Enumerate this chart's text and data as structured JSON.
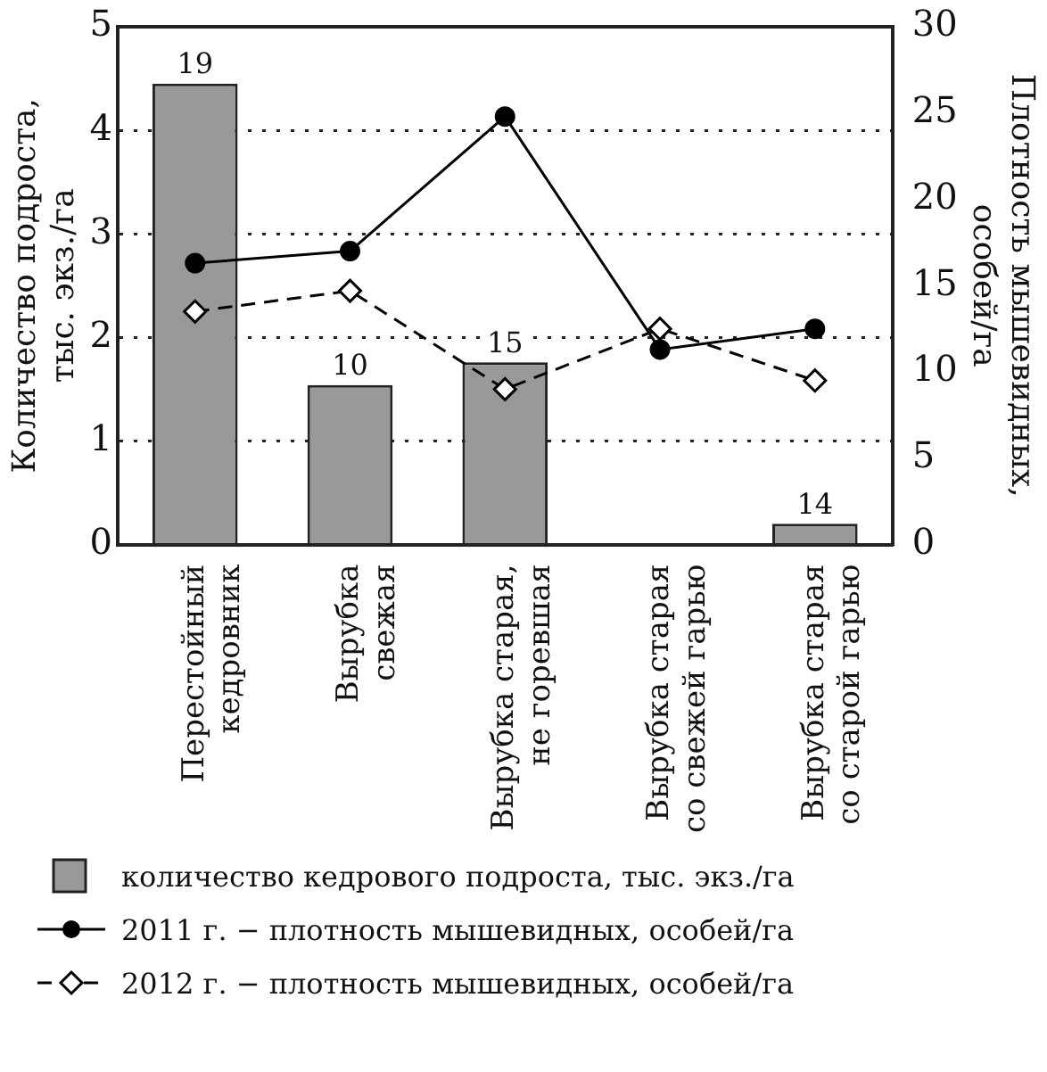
{
  "chart_data": {
    "type": "bar",
    "categories": [
      "Перестойный\nкедровник",
      "Вырубка\nсвежая",
      "Вырубка старая,\nне горевшая",
      "Вырубка старая\nсо свежей гарью",
      "Вырубка старая\nсо старой гарью"
    ],
    "ylabel": "Количество подроста,\nтыс. экз./га",
    "y2label": "Плотность мышевидных,\nособей/га",
    "series": [
      {
        "name": "количество кедрового подроста, тыс. экз./га",
        "color": "#999999",
        "values": [
          4.45,
          1.54,
          1.76,
          0,
          0.2
        ]
      },
      {
        "name": "2011 г. − плотность мышевидных, особей/га",
        "type": "line",
        "axis": "y2",
        "color": "#000000",
        "marker": "circle",
        "line_style": "solid",
        "values": [
          16.3,
          17.0,
          24.8,
          11.3,
          12.5
        ]
      },
      {
        "name": "2012 г. − плотность мышевидных, особей/га",
        "type": "line",
        "axis": "y2",
        "color": "#000000",
        "marker": "diamond",
        "line_style": "dashed",
        "values": [
          13.5,
          14.7,
          9.0,
          12.5,
          9.5
        ]
      }
    ],
    "ylim": [
      0,
      5
    ],
    "yticks": [
      0,
      1,
      2,
      3,
      4,
      5
    ],
    "y2lim": [
      0,
      30
    ],
    "y2ticks": [
      0,
      5,
      10,
      15,
      20,
      25,
      30
    ],
    "annotations": [
      {
        "text": "19",
        "x": "Перестойный\nкедровник",
        "y": 4.45
      },
      {
        "text": "10",
        "x": "Вырубка\nсвежая",
        "y": 1.54
      },
      {
        "text": "15",
        "x": "Вырубка старая,\nне горевшая",
        "y": 1.76
      },
      {
        "text": "14",
        "x": "Вырубка старая\nсо старой гарью",
        "y": 0.2
      }
    ],
    "grid": "y",
    "legend": "bottom"
  }
}
